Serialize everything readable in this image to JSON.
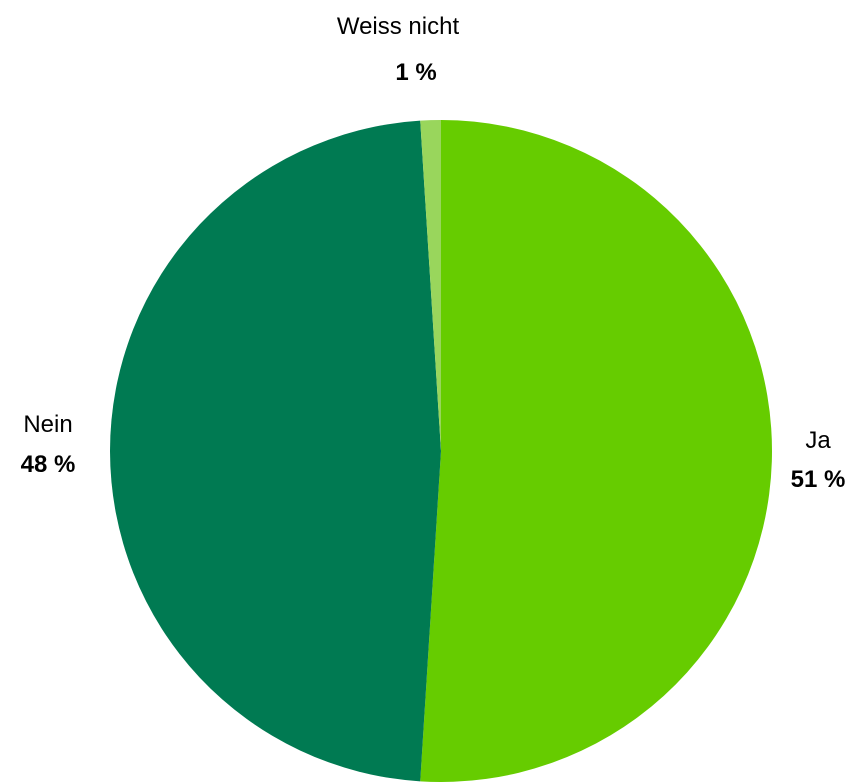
{
  "chart_data": {
    "type": "pie",
    "slices": [
      {
        "label": "Ja",
        "value": 51,
        "value_label": "51 %",
        "color": "#66cc00"
      },
      {
        "label": "Nein",
        "value": 48,
        "value_label": "48 %",
        "color": "#007a52"
      },
      {
        "label": "Weiss nicht",
        "value": 1,
        "value_label": "1 %",
        "color": "#99d65c"
      }
    ],
    "start": "12 o'clock",
    "direction": "clockwise",
    "legend": "none",
    "data_labels": "outside, label above bold percentage"
  }
}
